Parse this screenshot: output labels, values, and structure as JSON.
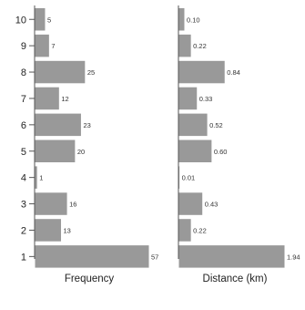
{
  "chart_data": [
    {
      "type": "bar",
      "orientation": "horizontal",
      "categories": [
        "1",
        "2",
        "3",
        "4",
        "5",
        "6",
        "7",
        "8",
        "9",
        "10"
      ],
      "values": [
        57,
        13,
        16,
        1,
        20,
        23,
        12,
        25,
        7,
        5
      ],
      "value_labels": [
        "57",
        "13",
        "16",
        "1",
        "20",
        "23",
        "12",
        "25",
        "7",
        "5"
      ],
      "xlabel": "Frequency",
      "xlim": [
        0,
        57
      ],
      "grid": false,
      "bar_color": "#999999"
    },
    {
      "type": "bar",
      "orientation": "horizontal",
      "categories": [
        "1",
        "2",
        "3",
        "4",
        "5",
        "6",
        "7",
        "8",
        "9",
        "10"
      ],
      "values": [
        1.94,
        0.22,
        0.43,
        0.01,
        0.6,
        0.52,
        0.33,
        0.84,
        0.22,
        0.1
      ],
      "value_labels": [
        "1.94",
        "0.22",
        "0.43",
        "0.01",
        "0.60",
        "0.52",
        "0.33",
        "0.84",
        "0.22",
        "0.10"
      ],
      "xlabel": "Distance (km)",
      "xlim": [
        0,
        1.94
      ],
      "grid": false,
      "bar_color": "#999999"
    }
  ]
}
